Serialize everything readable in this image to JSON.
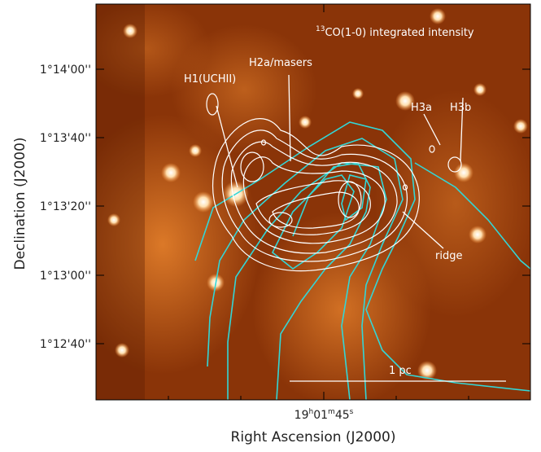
{
  "figure": {
    "title": {
      "iso": "13",
      "text": "CO(1-0) integrated intensity"
    },
    "x_axis": {
      "label": "Right Ascension (J2000)",
      "ticks": [
        [
          "19",
          "h",
          "01",
          "m",
          "45",
          "s"
        ]
      ]
    },
    "y_axis": {
      "label": "Declination (J2000)",
      "ticks": [
        "1°14'00''",
        "1°13'40''",
        "1°13'20''",
        "1°13'00''",
        "1°12'40''"
      ]
    },
    "annotations": {
      "h1": "H1(UCHII)",
      "h2a": "H2a/masers",
      "h3a": "H3a",
      "h3b": "H3b",
      "ridge": "ridge",
      "scale": "1 pc"
    }
  }
}
